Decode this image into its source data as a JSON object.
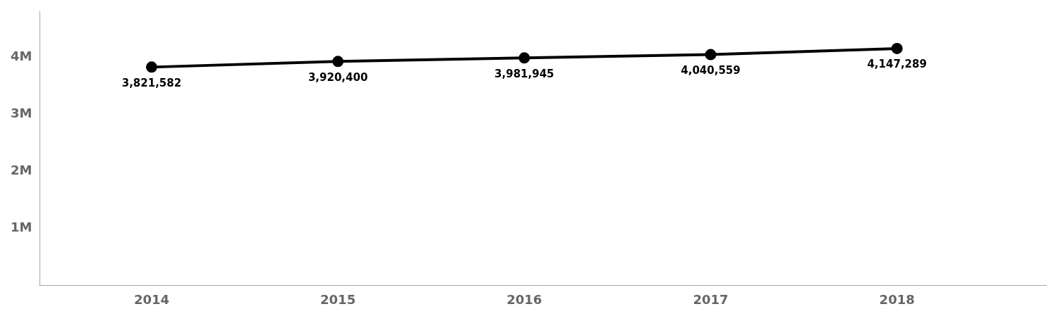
{
  "chart_data": {
    "type": "line",
    "x": [
      2014,
      2015,
      2016,
      2017,
      2018
    ],
    "values": [
      3821582,
      3920400,
      3981945,
      4040559,
      4147289
    ],
    "value_labels": [
      "3,821,582",
      "3,920,400",
      "3,981,945",
      "4,040,559",
      "4,147,289"
    ],
    "data_labels": true,
    "color": "#000000",
    "marker": "circle",
    "xlim": [
      2013.4,
      2018.8
    ],
    "xticks": [
      2014,
      2015,
      2016,
      2017,
      2018
    ],
    "ylim": [
      0,
      4800000
    ],
    "yticks": [
      {
        "value": 1000000,
        "label": "1M"
      },
      {
        "value": 2000000,
        "label": "2M"
      },
      {
        "value": 3000000,
        "label": "3M"
      },
      {
        "value": 4000000,
        "label": "4M"
      }
    ],
    "grid": false
  }
}
